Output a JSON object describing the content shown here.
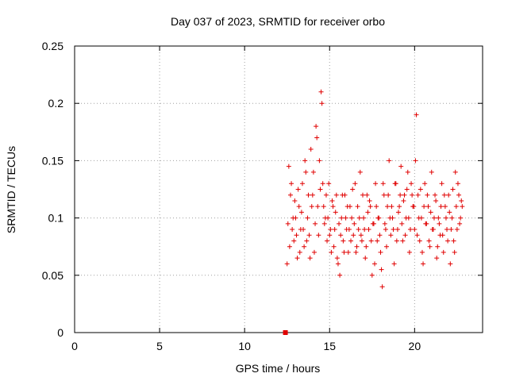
{
  "chart_data": {
    "type": "scatter",
    "title": "Day 037 of 2023, SRMTID for receiver orbo",
    "xlabel": "GPS time / hours",
    "ylabel": "SRMTID / TECUs",
    "xlim": [
      0,
      24
    ],
    "ylim": [
      0,
      0.25
    ],
    "xticks": [
      0,
      5,
      10,
      15,
      20
    ],
    "xtick_labels": [
      "0",
      "5",
      "10",
      "15",
      "20"
    ],
    "yticks": [
      0,
      0.05,
      0.1,
      0.15,
      0.2,
      0.25
    ],
    "ytick_labels": [
      "0",
      "0.05",
      "0.1",
      "0.15",
      "0.2",
      "0.25"
    ],
    "grid": true,
    "marker_color": "#e00000",
    "series": [
      {
        "name": "SRMTID",
        "marker": "plus",
        "x": [
          12.5,
          12.6,
          12.7,
          12.8,
          12.9,
          13.0,
          13.1,
          13.2,
          13.3,
          13.4,
          13.5,
          13.6,
          13.7,
          13.8,
          13.9,
          14.0,
          14.1,
          14.2,
          14.3,
          14.4,
          14.5,
          14.6,
          14.7,
          14.8,
          14.9,
          15.0,
          15.1,
          15.2,
          15.3,
          15.4,
          15.5,
          15.6,
          15.7,
          15.8,
          15.9,
          16.0,
          16.1,
          16.2,
          16.3,
          16.4,
          16.5,
          16.6,
          16.7,
          16.8,
          16.9,
          17.0,
          17.1,
          17.2,
          17.3,
          17.4,
          17.5,
          17.6,
          17.7,
          17.8,
          17.9,
          18.0,
          18.1,
          18.2,
          18.3,
          18.4,
          18.5,
          18.6,
          18.7,
          18.8,
          18.9,
          19.0,
          19.1,
          19.2,
          19.3,
          19.4,
          19.5,
          19.6,
          19.7,
          19.8,
          19.9,
          20.0,
          20.1,
          20.2,
          20.3,
          20.4,
          20.5,
          20.6,
          20.7,
          20.8,
          20.9,
          21.0,
          21.1,
          21.2,
          21.3,
          21.4,
          21.5,
          21.6,
          21.7,
          21.8,
          21.9,
          22.0,
          22.1,
          22.2,
          22.3,
          22.4,
          22.5,
          22.6,
          22.7,
          22.8,
          12.55,
          12.65,
          12.75,
          12.85,
          12.95,
          13.05,
          13.15,
          13.25,
          13.35,
          13.45,
          13.55,
          13.65,
          13.75,
          13.85,
          13.95,
          14.05,
          14.15,
          14.25,
          14.35,
          14.45,
          14.55,
          14.65,
          14.75,
          14.85,
          14.95,
          15.05,
          15.15,
          15.25,
          15.35,
          15.45,
          15.55,
          15.65,
          15.75,
          15.85,
          15.95,
          16.05,
          16.15,
          16.25,
          16.35,
          16.45,
          16.55,
          16.65,
          16.75,
          16.85,
          16.95,
          17.05,
          17.15,
          17.25,
          17.35,
          17.45,
          17.55,
          17.65,
          17.75,
          17.85,
          17.95,
          18.05,
          18.15,
          18.25,
          18.35,
          18.45,
          18.55,
          18.65,
          18.75,
          18.85,
          18.95,
          19.05,
          19.15,
          19.25,
          19.35,
          19.45,
          19.55,
          19.65,
          19.75,
          19.85,
          19.95,
          20.05,
          20.15,
          20.25,
          20.35,
          20.45,
          20.55,
          20.65,
          20.75,
          20.85,
          20.95,
          21.05,
          21.15,
          21.25,
          21.35,
          21.45,
          21.55,
          21.65,
          21.75,
          21.85,
          21.95,
          22.05,
          22.15,
          22.25,
          22.35,
          22.45,
          22.55,
          22.65,
          22.75
        ],
        "y": [
          0.06,
          0.145,
          0.12,
          0.09,
          0.08,
          0.1,
          0.065,
          0.11,
          0.09,
          0.13,
          0.075,
          0.14,
          0.1,
          0.085,
          0.16,
          0.12,
          0.07,
          0.18,
          0.11,
          0.15,
          0.21,
          0.13,
          0.095,
          0.12,
          0.1,
          0.085,
          0.07,
          0.11,
          0.09,
          0.12,
          0.06,
          0.05,
          0.1,
          0.08,
          0.12,
          0.09,
          0.07,
          0.11,
          0.1,
          0.085,
          0.13,
          0.075,
          0.09,
          0.14,
          0.08,
          0.1,
          0.065,
          0.12,
          0.09,
          0.11,
          0.05,
          0.095,
          0.13,
          0.08,
          0.1,
          0.07,
          0.04,
          0.12,
          0.09,
          0.11,
          0.15,
          0.085,
          0.1,
          0.06,
          0.13,
          0.09,
          0.11,
          0.145,
          0.08,
          0.12,
          0.1,
          0.14,
          0.07,
          0.13,
          0.11,
          0.09,
          0.19,
          0.12,
          0.08,
          0.1,
          0.06,
          0.13,
          0.095,
          0.11,
          0.075,
          0.14,
          0.09,
          0.12,
          0.065,
          0.1,
          0.085,
          0.13,
          0.07,
          0.11,
          0.09,
          0.12,
          0.06,
          0.1,
          0.08,
          0.14,
          0.09,
          0.12,
          0.1,
          0.11,
          0.095,
          0.075,
          0.13,
          0.1,
          0.115,
          0.085,
          0.125,
          0.07,
          0.105,
          0.09,
          0.15,
          0.08,
          0.12,
          0.065,
          0.11,
          0.14,
          0.095,
          0.17,
          0.085,
          0.125,
          0.2,
          0.11,
          0.1,
          0.08,
          0.13,
          0.09,
          0.115,
          0.075,
          0.105,
          0.065,
          0.095,
          0.085,
          0.12,
          0.07,
          0.1,
          0.11,
          0.09,
          0.08,
          0.125,
          0.095,
          0.07,
          0.11,
          0.1,
          0.085,
          0.12,
          0.09,
          0.075,
          0.105,
          0.115,
          0.08,
          0.095,
          0.06,
          0.11,
          0.1,
          0.085,
          0.055,
          0.13,
          0.095,
          0.075,
          0.12,
          0.1,
          0.11,
          0.09,
          0.13,
          0.08,
          0.105,
          0.12,
          0.095,
          0.115,
          0.085,
          0.125,
          0.1,
          0.09,
          0.12,
          0.11,
          0.15,
          0.085,
          0.1,
          0.125,
          0.07,
          0.11,
          0.095,
          0.12,
          0.08,
          0.105,
          0.09,
          0.1,
          0.115,
          0.075,
          0.095,
          0.11,
          0.085,
          0.12,
          0.1,
          0.08,
          0.105,
          0.09,
          0.125,
          0.07,
          0.11,
          0.13,
          0.095,
          0.115
        ]
      }
    ],
    "annotation_square": {
      "x": 12.4,
      "y": 0.0
    }
  }
}
